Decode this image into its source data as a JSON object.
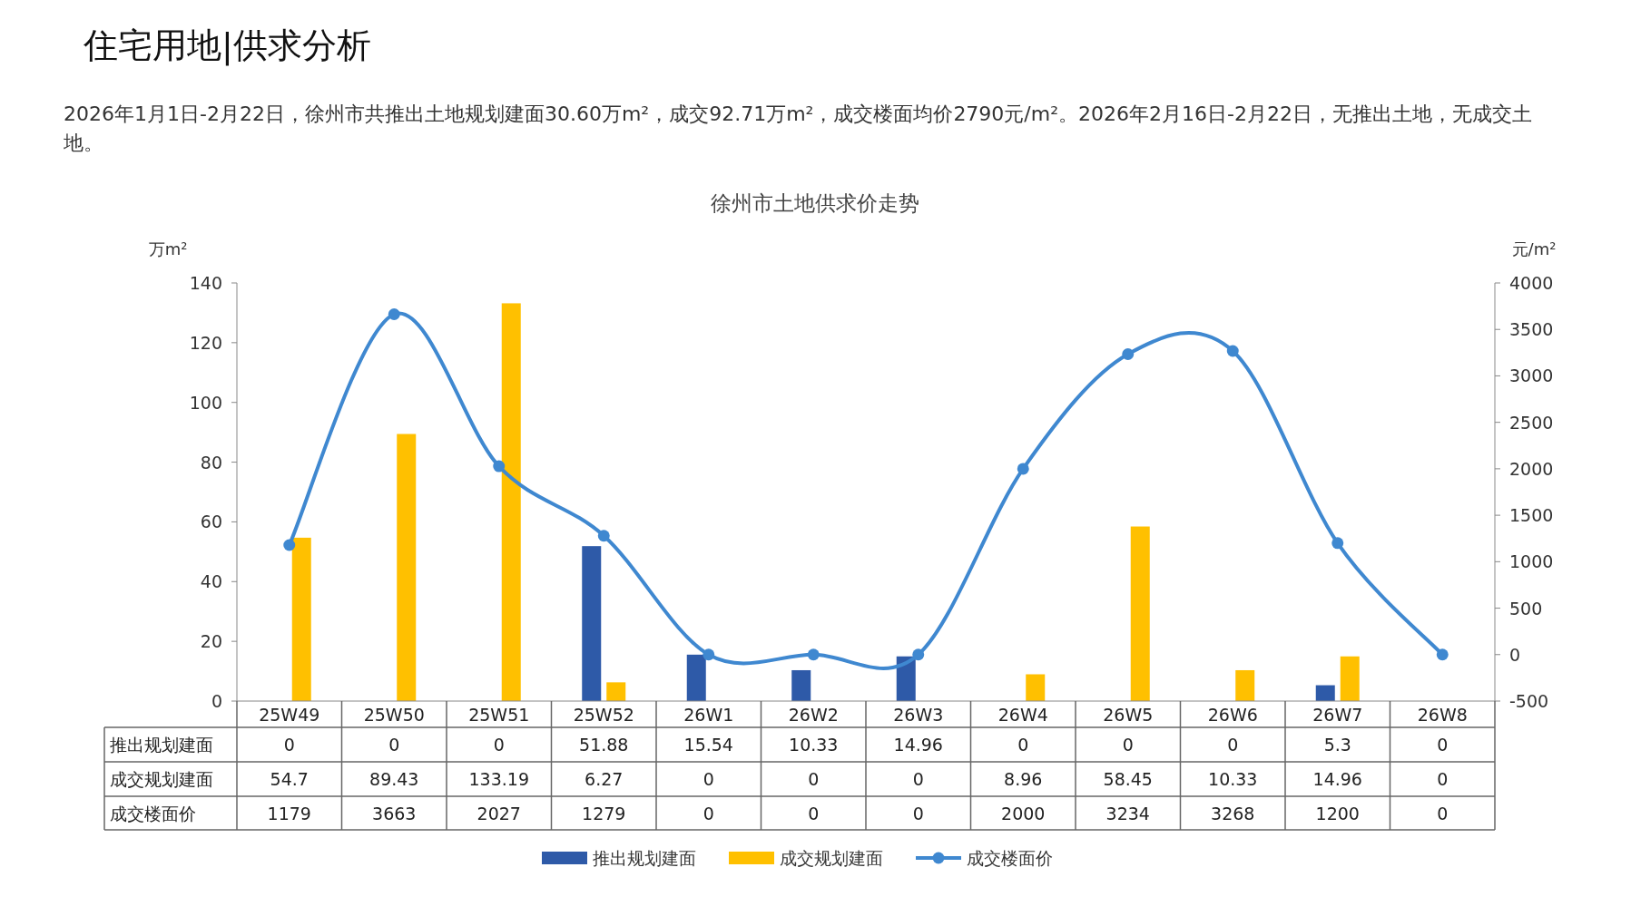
{
  "chart_data": {
    "type": "bar",
    "title": "徐州市土地供求价走势",
    "annotations": [
      "住宅用地|供求分析",
      "2026年1月1日-2月22日，徐州市共推出土地规划建面30.60万m²，成交92.71万m²，成交楼面均价2790元/m²。2026年2月16日-2月22日，无推出土地，无成交土地。"
    ],
    "ylabel": "万m²",
    "y2label": "元/m²",
    "categories": [
      "25W49",
      "25W50",
      "25W51",
      "25W52",
      "26W1",
      "26W2",
      "26W3",
      "26W4",
      "26W5",
      "26W6",
      "26W7",
      "26W8"
    ],
    "series": [
      {
        "name": "推出规划建面",
        "color": "#2e5aa8",
        "values": [
          0,
          0,
          0,
          51.88,
          15.54,
          10.33,
          14.96,
          0,
          0,
          0,
          5.3,
          0
        ]
      },
      {
        "name": "成交规划建面",
        "color": "#ffc000",
        "values": [
          54.7,
          89.43,
          133.19,
          6.27,
          0,
          0,
          0,
          8.96,
          58.45,
          10.33,
          14.96,
          0
        ]
      },
      {
        "name": "成交楼面价",
        "type": "line",
        "axis": "y2",
        "color": "#3f88d0",
        "marker": "circle",
        "line_style": "solid",
        "values": [
          1179,
          3663,
          2027,
          1279,
          0,
          0,
          0,
          2000,
          3234,
          3268,
          1200,
          0
        ]
      }
    ],
    "ylim": [
      0,
      140
    ],
    "yticks": [
      0,
      20,
      40,
      60,
      80,
      100,
      120,
      140
    ],
    "y2lim": [
      -500,
      4000
    ],
    "y2ticks": [
      -500,
      0,
      500,
      1000,
      1500,
      2000,
      2500,
      3000,
      3500,
      4000
    ],
    "data_labels": true,
    "legend": "bottom",
    "grid": false
  }
}
